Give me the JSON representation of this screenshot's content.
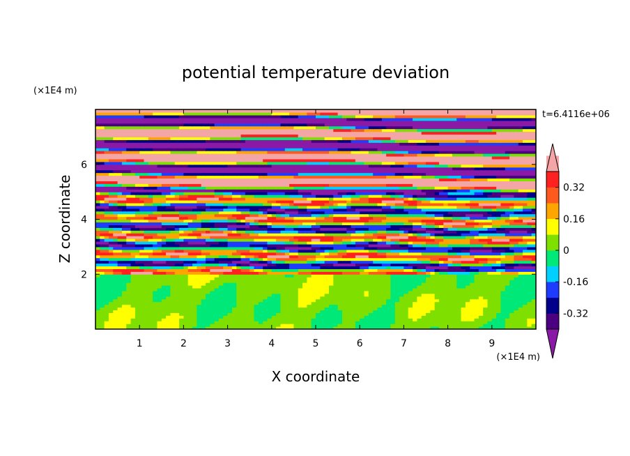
{
  "chart_data": {
    "type": "heatmap",
    "title": "potential temperature deviation",
    "time_label": "t=6.4116e+06",
    "xlabel": "X coordinate",
    "ylabel": "Z coordinate",
    "x_unit": "(×1E4 m)",
    "z_unit": "(×1E4 m)",
    "xlim": [
      0,
      10
    ],
    "zlim": [
      0,
      8
    ],
    "x_ticks": [
      "1",
      "2",
      "3",
      "4",
      "5",
      "6",
      "7",
      "8",
      "9"
    ],
    "z_ticks": [
      "2",
      "4",
      "6"
    ],
    "colorbar": {
      "levels": [
        -0.4,
        -0.32,
        -0.24,
        -0.16,
        -0.08,
        0,
        0.08,
        0.16,
        0.24,
        0.32,
        0.4
      ],
      "labels": [
        "0.32",
        "0.16",
        "0",
        "-0.16",
        "-0.32"
      ],
      "colors_low_to_high": [
        "#4b0082",
        "#00008b",
        "#1e3cff",
        "#00d0ff",
        "#00e878",
        "#7fe000",
        "#ffff00",
        "#ffa500",
        "#ff5a1e",
        "#ff2020",
        "#f4a6a6"
      ],
      "under_color": "#8a1aa6",
      "over_color": "#f4a6a6",
      "extend": "both"
    },
    "layers": [
      {
        "z_range": [
          0,
          2
        ],
        "pattern": "mostly green and light green with small yellow/orange streaks"
      },
      {
        "z_range": [
          2,
          5
        ],
        "pattern": "mixed horizontal streaks of blue, cyan, green, yellow, orange, red"
      },
      {
        "z_range": [
          5,
          8
        ],
        "pattern": "alternating bands of purple and pink with thin multicolor transition lines"
      }
    ]
  }
}
